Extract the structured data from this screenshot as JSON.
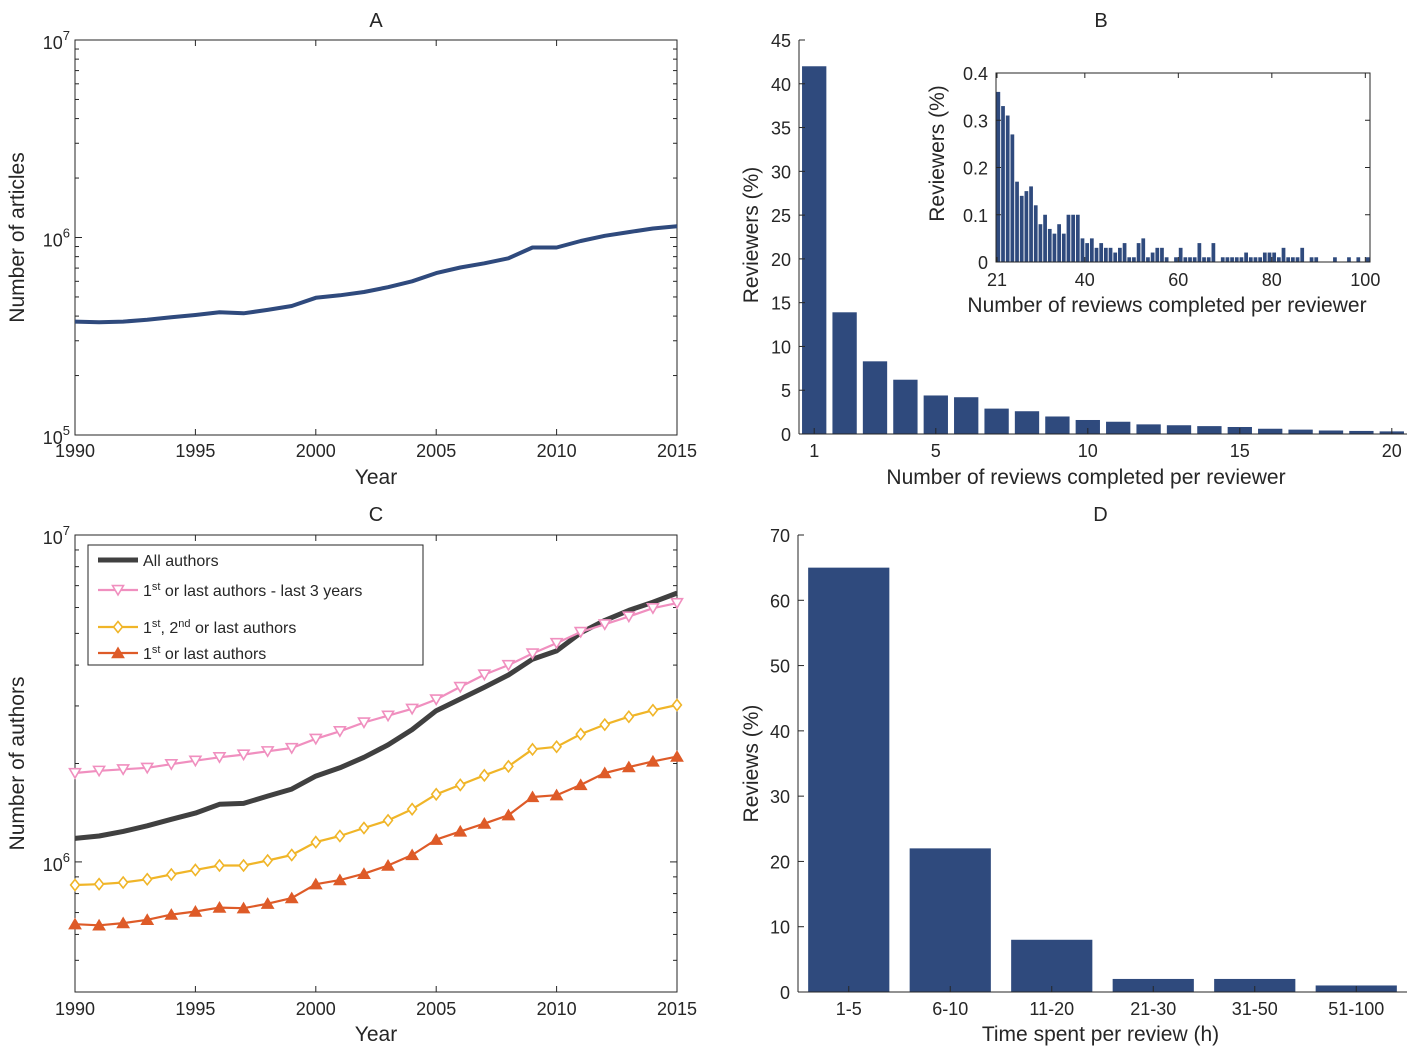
{
  "chart_data": [
    {
      "id": "A",
      "type": "line",
      "title": "A",
      "xlabel": "Year",
      "ylabel": "Number of articles",
      "xlim": [
        1990,
        2015
      ],
      "ylim": [
        100000,
        10000000
      ],
      "yscale": "log",
      "xticks": [
        1990,
        1995,
        2000,
        2005,
        2010,
        2015
      ],
      "yticks": [
        {
          "value": 100000,
          "base": "10",
          "exp": "5"
        },
        {
          "value": 1000000,
          "base": "10",
          "exp": "6"
        },
        {
          "value": 10000000,
          "base": "10",
          "exp": "7"
        }
      ],
      "grid": false,
      "series": [
        {
          "color": "#2f4a7d",
          "x": [
            1990,
            1991,
            1992,
            1993,
            1994,
            1995,
            1996,
            1997,
            1998,
            1999,
            2000,
            2001,
            2002,
            2003,
            2004,
            2005,
            2006,
            2007,
            2008,
            2009,
            2010,
            2011,
            2012,
            2013,
            2014,
            2015
          ],
          "y": [
            375000,
            372000,
            375000,
            383000,
            395000,
            405000,
            418000,
            413000,
            430000,
            450000,
            495000,
            510000,
            530000,
            560000,
            600000,
            660000,
            705000,
            740000,
            785000,
            890000,
            890000,
            960000,
            1020000,
            1065000,
            1110000,
            1140000
          ]
        }
      ]
    },
    {
      "id": "B",
      "type": "bar",
      "title": "B",
      "xlabel": "Number of reviews completed per reviewer",
      "ylabel": "Reviewers (%)",
      "xlim": [
        0.5,
        20.5
      ],
      "ylim": [
        0,
        45
      ],
      "xticks": [
        1,
        5,
        10,
        15,
        20
      ],
      "yticks": [
        0,
        5,
        10,
        15,
        20,
        25,
        30,
        35,
        40,
        45
      ],
      "color": "#2f4a7d",
      "x": [
        1,
        2,
        3,
        4,
        5,
        6,
        7,
        8,
        9,
        10,
        11,
        12,
        13,
        14,
        15,
        16,
        17,
        18,
        19,
        20
      ],
      "values": [
        42,
        13.9,
        8.3,
        6.2,
        4.4,
        4.2,
        2.9,
        2.6,
        2.0,
        1.6,
        1.4,
        1.1,
        1.0,
        0.9,
        0.8,
        0.6,
        0.5,
        0.4,
        0.35,
        0.3
      ],
      "inset": {
        "type": "bar",
        "xlabel": "Number of reviews completed per reviewer",
        "ylabel": "Reviewers (%)",
        "xlim": [
          21,
          101
        ],
        "ylim": [
          0,
          0.4
        ],
        "xticks": [
          21,
          40,
          60,
          80,
          100
        ],
        "yticks": [
          0,
          0.1,
          0.2,
          0.3,
          0.4
        ],
        "x_start": 21,
        "values": [
          0.36,
          0.33,
          0.31,
          0.27,
          0.17,
          0.14,
          0.15,
          0.16,
          0.12,
          0.08,
          0.1,
          0.07,
          0.06,
          0.08,
          0.06,
          0.1,
          0.1,
          0.1,
          0.05,
          0.04,
          0.05,
          0.03,
          0.04,
          0.03,
          0.03,
          0.02,
          0.03,
          0.04,
          0.01,
          0.01,
          0.04,
          0.05,
          0.01,
          0.02,
          0.03,
          0.03,
          0.01,
          0.01,
          0.01,
          0.03,
          0.01,
          0.01,
          0.01,
          0.04,
          0.01,
          0.01,
          0.04,
          0.01,
          0.01,
          0.01,
          0.01,
          0.01,
          0.01,
          0.02,
          0.01,
          0.01,
          0.01,
          0.02,
          0.02,
          0.02,
          0.01,
          0.03,
          0.01,
          0.01,
          0.01,
          0.03,
          0.01,
          0.01,
          0.01,
          0.01,
          0.01,
          0.01,
          0.01,
          0.01,
          0.01,
          0.01,
          0.01,
          0.01,
          0.01,
          0.01
        ],
        "present": [
          1,
          1,
          1,
          1,
          1,
          1,
          1,
          1,
          1,
          1,
          1,
          1,
          1,
          1,
          1,
          1,
          1,
          1,
          1,
          1,
          1,
          1,
          1,
          1,
          1,
          1,
          1,
          1,
          1,
          1,
          1,
          1,
          1,
          1,
          1,
          1,
          1,
          0,
          1,
          1,
          1,
          1,
          1,
          1,
          1,
          1,
          1,
          0,
          1,
          1,
          1,
          1,
          1,
          1,
          1,
          1,
          1,
          1,
          1,
          1,
          1,
          1,
          1,
          1,
          1,
          1,
          0,
          1,
          1,
          0,
          0,
          0,
          1,
          0,
          0,
          1,
          0,
          1,
          0,
          1
        ]
      }
    },
    {
      "id": "C",
      "type": "line",
      "title": "C",
      "xlabel": "Year",
      "ylabel": "Number of authors",
      "xlim": [
        1990,
        2015
      ],
      "ylim": [
        400000,
        10000000
      ],
      "yscale": "log",
      "xticks": [
        1990,
        1995,
        2000,
        2005,
        2010,
        2015
      ],
      "yticks": [
        {
          "value": 1000000,
          "base": "10",
          "exp": "6"
        },
        {
          "value": 10000000,
          "base": "10",
          "exp": "7"
        }
      ],
      "grid": false,
      "legend_position": "top-left",
      "x": [
        1990,
        1991,
        1992,
        1993,
        1994,
        1995,
        1996,
        1997,
        1998,
        1999,
        2000,
        2001,
        2002,
        2003,
        2004,
        2005,
        2006,
        2007,
        2008,
        2009,
        2010,
        2011,
        2012,
        2013,
        2014,
        2015
      ],
      "series": [
        {
          "name": "All authors",
          "color": "#404040",
          "marker": "none",
          "values": [
            1180000,
            1200000,
            1240000,
            1290000,
            1350000,
            1410000,
            1500000,
            1510000,
            1590000,
            1670000,
            1830000,
            1940000,
            2090000,
            2280000,
            2540000,
            2900000,
            3150000,
            3420000,
            3730000,
            4170000,
            4420000,
            5020000,
            5480000,
            5880000,
            6230000,
            6640000
          ]
        },
        {
          "name_parts": [
            "1",
            "st",
            " or last authors - last 3 years"
          ],
          "color": "#f08fbf",
          "marker": "triangle-down",
          "values": [
            1870000,
            1900000,
            1920000,
            1940000,
            1990000,
            2040000,
            2090000,
            2130000,
            2180000,
            2230000,
            2380000,
            2510000,
            2670000,
            2800000,
            2940000,
            3140000,
            3430000,
            3740000,
            4000000,
            4340000,
            4670000,
            5050000,
            5330000,
            5630000,
            5970000,
            6190000
          ]
        },
        {
          "name_parts": [
            "1",
            "st",
            ", 2",
            "nd",
            " or last authors"
          ],
          "color": "#f0b528",
          "marker": "diamond",
          "values": [
            850000,
            855000,
            865000,
            885000,
            915000,
            945000,
            975000,
            975000,
            1010000,
            1050000,
            1150000,
            1200000,
            1270000,
            1340000,
            1450000,
            1610000,
            1720000,
            1840000,
            1960000,
            2210000,
            2250000,
            2460000,
            2630000,
            2780000,
            2910000,
            3020000
          ]
        },
        {
          "name_parts": [
            "1",
            "st",
            " or last authors"
          ],
          "color": "#de5b28",
          "marker": "triangle-up",
          "values": [
            645000,
            640000,
            650000,
            665000,
            690000,
            705000,
            725000,
            722000,
            745000,
            775000,
            855000,
            880000,
            920000,
            975000,
            1050000,
            1170000,
            1240000,
            1310000,
            1390000,
            1580000,
            1600000,
            1720000,
            1870000,
            1950000,
            2030000,
            2100000
          ]
        }
      ]
    },
    {
      "id": "D",
      "type": "bar",
      "title": "D",
      "xlabel": "Time spent per review (h)",
      "ylabel": "Reviews (%)",
      "ylim": [
        0,
        70
      ],
      "yticks": [
        0,
        10,
        20,
        30,
        40,
        50,
        60,
        70
      ],
      "color": "#2f4a7d",
      "categories": [
        "1-5",
        "6-10",
        "11-20",
        "21-30",
        "31-50",
        "51-100"
      ],
      "values": [
        65,
        22,
        8,
        2,
        2,
        1
      ]
    }
  ]
}
